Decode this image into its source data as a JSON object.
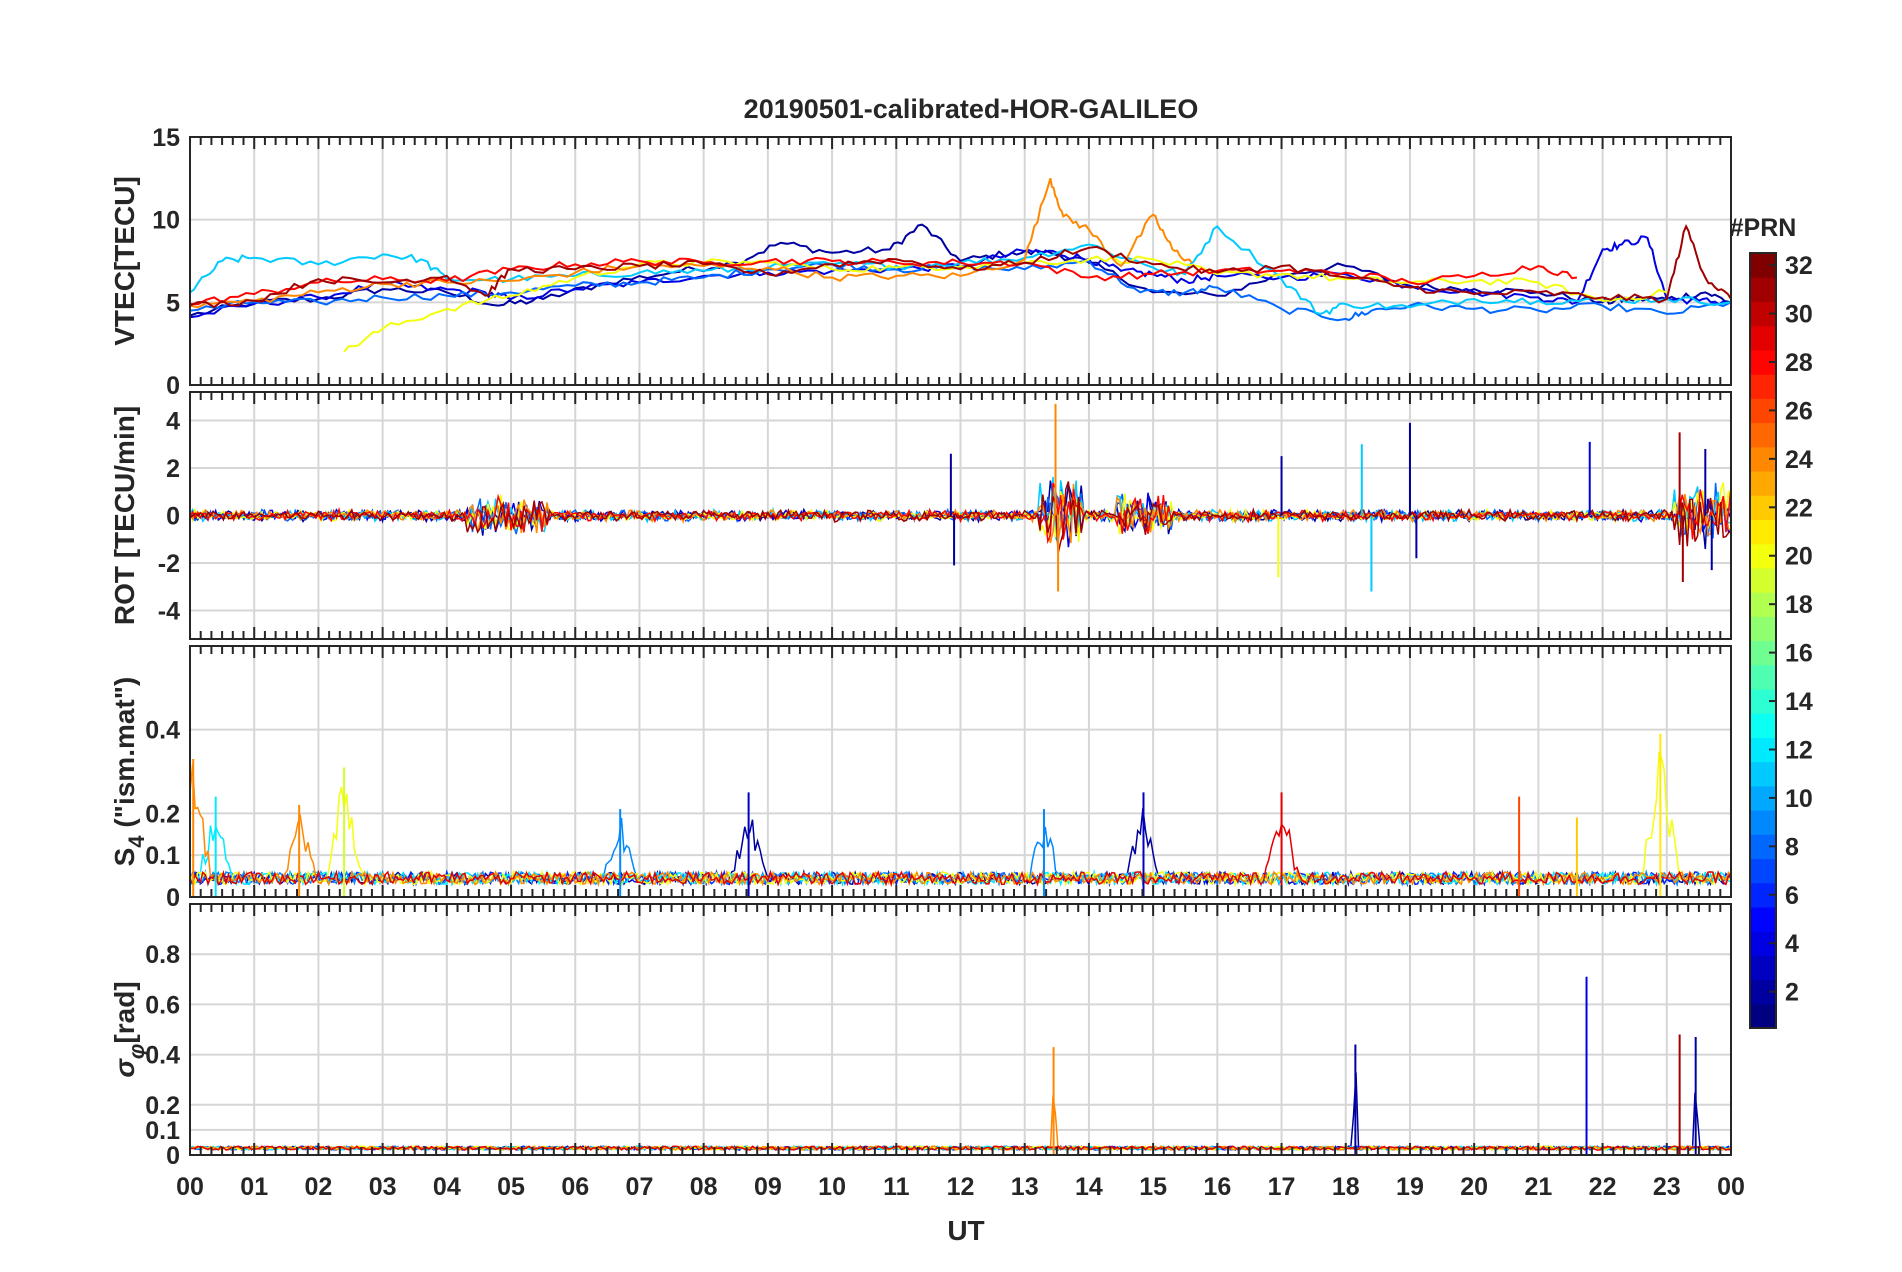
{
  "chart_data": [
    {
      "type": "line",
      "title": "20190501-calibrated-HOR-GALILEO",
      "ylabel": "VTEC[TECU]",
      "ylim": [
        0,
        15
      ],
      "yticks": [
        "0",
        "5",
        "10",
        "15"
      ],
      "series": [
        {
          "prn": 2,
          "x": [
            0,
            1,
            2,
            3,
            4,
            4.8,
            5.5,
            6.5,
            7.5,
            8.5,
            9.2,
            10,
            10.9,
            11.4,
            12,
            12.8,
            13.4,
            14,
            15,
            16,
            17,
            18,
            19,
            20,
            21,
            22,
            22.4,
            23,
            23.6,
            24
          ],
          "y": [
            4.2,
            5,
            5.2,
            5.8,
            5.6,
            4.8,
            5.2,
            6.2,
            6.8,
            7.4,
            8.6,
            8,
            8.2,
            9.7,
            7.5,
            8,
            8,
            7.4,
            5.6,
            5.4,
            6.7,
            7.2,
            6,
            5.8,
            5.6,
            5,
            5.2,
            5.2,
            5.6,
            5
          ]
        },
        {
          "prn": 4,
          "x": [
            0,
            1,
            2,
            3,
            3.8,
            4.6,
            5,
            6,
            7,
            8,
            9,
            10,
            11,
            12,
            13,
            13.5,
            14,
            14.5,
            15,
            15.5,
            16,
            17,
            18,
            19,
            20,
            21,
            21.6,
            22,
            22.3,
            22.7,
            23,
            23.5,
            24
          ],
          "y": [
            4.1,
            4.9,
            5.3,
            6.1,
            5.8,
            5.6,
            5.2,
            5.8,
            6.2,
            6.6,
            6.8,
            6.9,
            7,
            7.2,
            8.1,
            8,
            7.6,
            6.9,
            6.7,
            6.3,
            6.6,
            6.5,
            6.7,
            6,
            5.6,
            5.3,
            5,
            8.2,
            8.5,
            8.9,
            5.2,
            5.1,
            5
          ]
        },
        {
          "prn": 8,
          "x": [
            0,
            1,
            2,
            3,
            4,
            5,
            6,
            7,
            8,
            9,
            10,
            11,
            12,
            13,
            14,
            14.8,
            15.5,
            16,
            17,
            18,
            18.4,
            19,
            20,
            21,
            22,
            23,
            24
          ],
          "y": [
            4.5,
            5,
            5,
            5.3,
            5.4,
            5.6,
            6,
            6.2,
            6.5,
            7,
            7.3,
            7,
            7.1,
            7,
            7.5,
            5.6,
            5.6,
            5.9,
            4.6,
            4,
            4.5,
            4.8,
            4.6,
            4.5,
            4.8,
            4.3,
            5
          ]
        },
        {
          "prn": 11,
          "x": [
            0,
            0.5,
            1,
            2,
            3,
            3.6,
            4,
            5,
            6,
            7,
            8,
            9,
            10,
            11,
            12,
            13,
            14,
            15,
            15.5,
            16,
            17,
            17.6,
            18,
            19,
            20,
            21,
            22,
            23,
            24
          ],
          "y": [
            5.6,
            7.5,
            7.7,
            7.3,
            7.9,
            7.6,
            6.4,
            6.4,
            6.6,
            6.8,
            6.9,
            7.1,
            7.3,
            7.2,
            7.4,
            7.7,
            8.5,
            7.1,
            6.7,
            9.6,
            6.4,
            4.3,
            4.9,
            4.7,
            5.2,
            5.1,
            5.1,
            5.2,
            5
          ]
        },
        {
          "prn": 20,
          "x": [
            2.4,
            3,
            4,
            5,
            6,
            7,
            8,
            9,
            10,
            11,
            12,
            13,
            14,
            15,
            16,
            17,
            18,
            19,
            20,
            21,
            22,
            23
          ],
          "y": [
            2,
            3.4,
            4.6,
            5.4,
            6.5,
            7.3,
            7.4,
            7.4,
            7,
            7.1,
            7.2,
            7.4,
            7.6,
            7.6,
            6.7,
            6.7,
            6.4,
            6.2,
            6.3,
            6.2,
            5.1,
            5.6
          ]
        },
        {
          "prn": 24,
          "x": [
            0,
            1,
            2,
            3,
            4,
            5,
            6,
            7,
            8,
            9,
            10,
            11,
            12,
            13,
            13.4,
            13.6,
            14,
            14.5,
            15,
            15.3,
            15.6
          ],
          "y": [
            4.8,
            5.1,
            5.6,
            6.1,
            6.2,
            6.3,
            6.8,
            7.2,
            7.2,
            7.1,
            6.5,
            6.6,
            6.6,
            7.6,
            12.5,
            10.2,
            9.4,
            7.2,
            10.3,
            8.2,
            7.4
          ]
        },
        {
          "prn": 28,
          "x": [
            0,
            1,
            2,
            3,
            4,
            5,
            6,
            7,
            8,
            9,
            10,
            11,
            12,
            13,
            14,
            15,
            16,
            17,
            18,
            19,
            20,
            21,
            21.6
          ],
          "y": [
            4.9,
            5.5,
            6.2,
            6.4,
            6.3,
            7,
            7.3,
            7.5,
            7.4,
            7.5,
            7.5,
            7.4,
            7.4,
            7.4,
            6.5,
            6.7,
            6.9,
            6.9,
            6.8,
            6.2,
            6.6,
            7.2,
            6.5
          ]
        },
        {
          "prn": 31,
          "x": [
            0,
            1,
            2,
            3,
            4,
            4.6,
            5,
            6,
            7,
            8,
            9,
            10,
            11,
            12,
            13,
            14,
            15,
            16,
            17,
            18,
            19,
            20,
            21,
            22,
            23,
            23.3,
            23.6,
            24
          ],
          "y": [
            4.8,
            5.1,
            6.4,
            6.2,
            6.6,
            5.4,
            7,
            7,
            7.2,
            7.3,
            6.7,
            7.3,
            7.6,
            7,
            7.4,
            8.3,
            7.3,
            6.8,
            7.2,
            6.5,
            5.9,
            5.5,
            5.6,
            5.3,
            5.2,
            9.6,
            6.5,
            5.2
          ]
        }
      ]
    },
    {
      "type": "line",
      "ylabel": "ROT [TECU/min]",
      "ylim": [
        -5.2,
        5.2
      ],
      "yticks": [
        "-4",
        "-2",
        "0",
        "2",
        "4"
      ],
      "spikes": [
        {
          "prn": 24,
          "x": 13.48,
          "y": 4.7
        },
        {
          "prn": 24,
          "x": 13.52,
          "y": -3.2
        },
        {
          "prn": 2,
          "x": 11.85,
          "y": 2.6
        },
        {
          "prn": 2,
          "x": 11.9,
          "y": -2.1
        },
        {
          "prn": 2,
          "x": 17.0,
          "y": 2.5
        },
        {
          "prn": 11,
          "x": 18.25,
          "y": 3.0
        },
        {
          "prn": 11,
          "x": 18.4,
          "y": -3.2
        },
        {
          "prn": 2,
          "x": 19.0,
          "y": 3.9
        },
        {
          "prn": 2,
          "x": 19.1,
          "y": -1.8
        },
        {
          "prn": 20,
          "x": 16.95,
          "y": -2.6
        },
        {
          "prn": 4,
          "x": 21.8,
          "y": 3.1
        },
        {
          "prn": 31,
          "x": 23.2,
          "y": 3.5
        },
        {
          "prn": 31,
          "x": 23.25,
          "y": -2.8
        },
        {
          "prn": 2,
          "x": 23.6,
          "y": 2.8
        },
        {
          "prn": 2,
          "x": 23.7,
          "y": -2.3
        }
      ]
    },
    {
      "type": "line",
      "ylabel_parts": [
        "S",
        "4",
        " (\"ism.mat\")"
      ],
      "ylim": [
        0,
        0.6
      ],
      "yticks": [
        "0",
        "0.1",
        "0.2",
        "0.4"
      ],
      "peaks": [
        {
          "prn": 24,
          "x": 0.05,
          "y": 0.33
        },
        {
          "prn": 12,
          "x": 0.4,
          "y": 0.24
        },
        {
          "prn": 24,
          "x": 1.7,
          "y": 0.22
        },
        {
          "prn": 19,
          "x": 2.4,
          "y": 0.31
        },
        {
          "prn": 9,
          "x": 6.7,
          "y": 0.21
        },
        {
          "prn": 3,
          "x": 8.7,
          "y": 0.25
        },
        {
          "prn": 9,
          "x": 13.3,
          "y": 0.21
        },
        {
          "prn": 3,
          "x": 14.85,
          "y": 0.25
        },
        {
          "prn": 29,
          "x": 17.0,
          "y": 0.25
        },
        {
          "prn": 26,
          "x": 20.7,
          "y": 0.24
        },
        {
          "prn": 22,
          "x": 21.6,
          "y": 0.19
        },
        {
          "prn": 21,
          "x": 22.9,
          "y": 0.39
        }
      ]
    },
    {
      "type": "line",
      "ylabel_parts": [
        "σ",
        "φ",
        "[rad]"
      ],
      "ylim": [
        0,
        1
      ],
      "yticks": [
        "0",
        "0.1",
        "0.2",
        "0.4",
        "0.6",
        "0.8"
      ],
      "peaks": [
        {
          "prn": 24,
          "x": 13.45,
          "y": 0.43
        },
        {
          "prn": 2,
          "x": 18.15,
          "y": 0.44
        },
        {
          "prn": 4,
          "x": 21.75,
          "y": 0.71
        },
        {
          "prn": 31,
          "x": 23.2,
          "y": 0.48
        },
        {
          "prn": 2,
          "x": 23.45,
          "y": 0.47
        }
      ]
    }
  ],
  "x_axis": {
    "label": "UT",
    "xlim": [
      0,
      24
    ],
    "ticks": [
      "00",
      "01",
      "02",
      "03",
      "04",
      "05",
      "06",
      "07",
      "08",
      "09",
      "10",
      "11",
      "12",
      "13",
      "14",
      "15",
      "16",
      "17",
      "18",
      "19",
      "20",
      "21",
      "22",
      "23",
      "00"
    ]
  },
  "colorbar": {
    "label": "#PRN",
    "range": [
      1,
      32
    ],
    "ticks": [
      "2",
      "4",
      "6",
      "8",
      "10",
      "12",
      "14",
      "16",
      "18",
      "20",
      "22",
      "24",
      "26",
      "28",
      "30",
      "32"
    ],
    "colormap": "jet"
  }
}
